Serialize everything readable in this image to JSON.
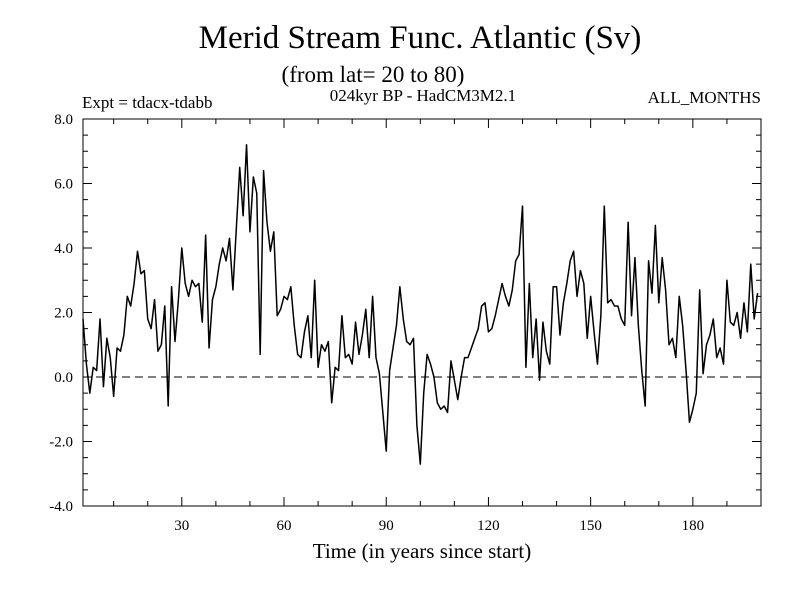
{
  "chart_data": {
    "type": "line",
    "title": "Merid Stream Func. Atlantic (Sv)",
    "subtitle": "(from lat= 20 to 80)",
    "annotations": {
      "left": "Expt = tdacx-tdabb",
      "center": "024kyr BP - HadCM3M2.1",
      "right": "ALL_MONTHS"
    },
    "xlabel": "Time (in years since start)",
    "ylabel": "",
    "xlim": [
      1,
      200
    ],
    "ylim": [
      -4.0,
      8.0
    ],
    "x_ticks": [
      "30",
      "60",
      "90",
      "120",
      "150",
      "180"
    ],
    "x_tick_values": [
      30,
      60,
      90,
      120,
      150,
      180
    ],
    "y_ticks": [
      "8.0",
      "6.0",
      "4.0",
      "2.0",
      "0.0",
      "-2.0",
      "-4.0"
    ],
    "y_tick_values": [
      8.0,
      6.0,
      4.0,
      2.0,
      0.0,
      -2.0,
      -4.0
    ],
    "zero_line": "dashed",
    "grid": false,
    "series": [
      {
        "name": "Merid Stream Func.",
        "x_start": 1,
        "x_step": 1,
        "values": [
          1.8,
          0.4,
          -0.5,
          0.3,
          0.2,
          1.8,
          -0.3,
          1.2,
          0.6,
          -0.6,
          0.9,
          0.8,
          1.3,
          2.5,
          2.2,
          2.9,
          3.9,
          3.2,
          3.3,
          1.8,
          1.5,
          2.4,
          0.8,
          1.0,
          2.2,
          -0.9,
          2.8,
          1.1,
          2.4,
          4.0,
          2.9,
          2.5,
          3.0,
          2.8,
          2.9,
          1.7,
          4.4,
          0.9,
          2.4,
          2.8,
          3.5,
          4.0,
          3.6,
          4.3,
          2.7,
          4.6,
          6.5,
          5.0,
          7.2,
          4.5,
          6.2,
          5.7,
          0.7,
          6.4,
          4.8,
          3.9,
          4.5,
          1.9,
          2.1,
          2.5,
          2.4,
          2.8,
          1.6,
          0.7,
          0.6,
          1.4,
          1.9,
          0.6,
          3.0,
          0.3,
          1.0,
          0.8,
          1.1,
          -0.8,
          0.3,
          0.2,
          1.9,
          0.6,
          0.7,
          0.4,
          1.7,
          0.7,
          1.3,
          2.1,
          0.6,
          2.5,
          0.6,
          0.1,
          -1.1,
          -2.3,
          0.2,
          0.9,
          1.6,
          2.8,
          1.8,
          1.1,
          1.0,
          1.2,
          -1.5,
          -2.7,
          -0.5,
          0.7,
          0.4,
          0.0,
          -0.8,
          -1.0,
          -0.9,
          -1.1,
          0.5,
          -0.1,
          -0.7,
          0.0,
          0.6,
          0.6,
          0.9,
          1.2,
          1.5,
          2.2,
          2.3,
          1.4,
          1.5,
          1.9,
          2.4,
          2.9,
          2.5,
          2.2,
          2.7,
          3.6,
          3.8,
          5.3,
          0.3,
          2.9,
          0.6,
          1.8,
          -0.1,
          1.7,
          0.8,
          0.4,
          2.8,
          2.8,
          1.3,
          2.3,
          2.9,
          3.6,
          3.9,
          2.5,
          3.3,
          2.9,
          1.2,
          2.5,
          1.4,
          0.4,
          1.9,
          5.3,
          2.3,
          2.4,
          2.2,
          2.2,
          1.8,
          1.6,
          4.8,
          1.9,
          3.7,
          1.6,
          0.2,
          -0.9,
          3.6,
          2.6,
          4.7,
          2.3,
          3.7,
          2.7,
          1.0,
          1.2,
          0.6,
          2.5,
          1.6,
          0.2,
          -1.4,
          -1.0,
          -0.5,
          2.7,
          0.1,
          1.0,
          1.3,
          1.8,
          0.6,
          0.9,
          0.4,
          3.0,
          1.7,
          1.6,
          2.0,
          1.2,
          2.3,
          1.4,
          3.5,
          1.8,
          2.6
        ]
      }
    ]
  }
}
